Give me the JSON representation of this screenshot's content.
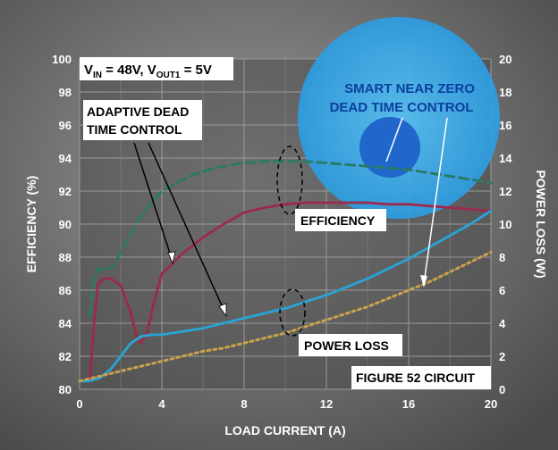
{
  "chart_data": {
    "type": "line",
    "xlabel": "LOAD CURRENT (A)",
    "ylabel_left": "EFFICIENCY (%)",
    "ylabel_right": "POWER LOSS (W)",
    "xlim": [
      0,
      20
    ],
    "ylim_left": [
      80,
      100
    ],
    "ylim_right": [
      0,
      20
    ],
    "x_ticks": [
      "0",
      "4",
      "8",
      "12",
      "16",
      "20"
    ],
    "y_left_ticks": [
      "80",
      "82",
      "84",
      "86",
      "88",
      "90",
      "92",
      "94",
      "96",
      "98",
      "100"
    ],
    "y_right_ticks": [
      "0",
      "2",
      "4",
      "6",
      "8",
      "10",
      "12",
      "14",
      "16",
      "18",
      "20"
    ],
    "grid": true,
    "condition_label": {
      "v": "V",
      "in": "IN",
      "eq1": " = 48V, V",
      "out": "OUT1",
      "eq2": " = 5V"
    },
    "annotations": {
      "adaptive": [
        "ADAPTIVE DEAD",
        "TIME CONTROL"
      ],
      "smart": [
        "SMART NEAR ZERO",
        "DEAD TIME CONTROL"
      ],
      "efficiency": "EFFICIENCY",
      "power_loss": "POWER LOSS",
      "figure": "FIGURE 52 CIRCUIT"
    },
    "series": [
      {
        "axis": "left",
        "style": "dashed",
        "color": "#2a7a66",
        "x": [
          0.5,
          0.7,
          0.9,
          1.2,
          1.6,
          2.0,
          2.5,
          3.0,
          3.5,
          4.0,
          5.0,
          6.0,
          7.0,
          8.0,
          9.0,
          10.0,
          11.0,
          12.0,
          13.0,
          14.0,
          15.0,
          16.0,
          17.0,
          18.0,
          19.0,
          20.0
        ],
        "y": [
          84.5,
          86.8,
          87.3,
          87.2,
          87.4,
          88.3,
          89.4,
          90.5,
          91.3,
          92.0,
          92.7,
          93.2,
          93.5,
          93.7,
          93.8,
          93.8,
          93.8,
          93.7,
          93.6,
          93.5,
          93.4,
          93.3,
          93.1,
          92.9,
          92.7,
          92.5
        ]
      },
      {
        "axis": "left",
        "style": "solid",
        "color": "#9b2a4c",
        "x": [
          0.5,
          0.7,
          0.9,
          1.2,
          1.5,
          2.0,
          2.5,
          2.8,
          3.0,
          3.3,
          3.6,
          4.0,
          5.0,
          6.0,
          7.0,
          8.0,
          9.0,
          10.0,
          11.0,
          12.0,
          13.0,
          14.0,
          15.0,
          16.0,
          17.0,
          18.0,
          19.0,
          20.0
        ],
        "y": [
          80.5,
          84.0,
          86.4,
          86.7,
          86.7,
          86.3,
          84.6,
          83.0,
          82.8,
          83.5,
          85.2,
          87.0,
          88.2,
          89.2,
          90.0,
          90.7,
          91.0,
          91.2,
          91.3,
          91.3,
          91.3,
          91.3,
          91.2,
          91.2,
          91.1,
          91.0,
          90.9,
          90.8
        ]
      },
      {
        "axis": "right",
        "style": "solid",
        "color": "#29a4d6",
        "x": [
          0,
          0.5,
          1.0,
          1.5,
          2.0,
          2.5,
          3.0,
          3.5,
          4.0,
          5.0,
          6.0,
          7.0,
          8.0,
          9.0,
          10.0,
          11.0,
          12.0,
          13.0,
          14.0,
          15.0,
          16.0,
          17.0,
          18.0,
          19.0,
          20.0
        ],
        "y": [
          0.5,
          0.5,
          0.7,
          1.2,
          2.0,
          2.8,
          3.2,
          3.3,
          3.3,
          3.5,
          3.7,
          4.0,
          4.3,
          4.6,
          4.9,
          5.3,
          5.7,
          6.2,
          6.7,
          7.3,
          7.9,
          8.6,
          9.3,
          10.0,
          10.8
        ]
      },
      {
        "axis": "right",
        "style": "dotted",
        "color": "#c9a24e",
        "x": [
          0,
          1.0,
          2.0,
          3.0,
          4.0,
          5.0,
          6.0,
          7.0,
          8.0,
          9.0,
          10.0,
          11.0,
          12.0,
          13.0,
          14.0,
          15.0,
          16.0,
          17.0,
          18.0,
          19.0,
          20.0
        ],
        "y": [
          0.5,
          0.8,
          1.1,
          1.4,
          1.7,
          2.0,
          2.3,
          2.5,
          2.8,
          3.1,
          3.4,
          3.8,
          4.2,
          4.6,
          5.0,
          5.5,
          6.0,
          6.5,
          7.1,
          7.7,
          8.3
        ]
      }
    ]
  },
  "colors": {
    "plot_bg": "#4b4b4b",
    "grid": "#9a9a9a",
    "label_box": "#ffffff",
    "highlight_circle": "#2fa6e8",
    "spot": "#1f62c9"
  }
}
